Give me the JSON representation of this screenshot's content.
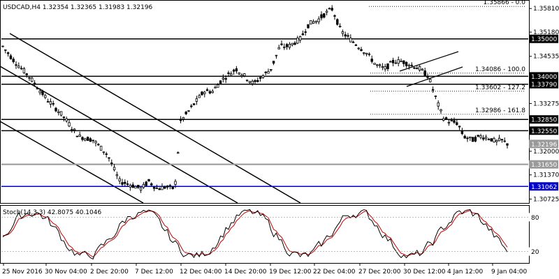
{
  "header": {
    "title": "USDCAD,H4  1.32354 1.32365 1.31983 1.32196"
  },
  "indicator": {
    "title": "Stoch(14,3,3) 42.8075 40.1046"
  },
  "colors": {
    "candle": "#000000",
    "support_line": "#000000",
    "low_line": "#999999",
    "blue_line": "#0000cc",
    "tag_black": "#000000",
    "tag_gray": "#999999",
    "tag_blue": "#0000cc",
    "stoch_main": "#000000",
    "stoch_signal": "#cc0000"
  },
  "chart_data": [
    {
      "type": "candlestick",
      "symbol": "USDCAD",
      "timeframe": "H4",
      "ylim": [
        1.3062,
        1.36
      ],
      "y_ticks": [
        "1.35810",
        "1.35180",
        "1.34535",
        "1.33275",
        "1.32000",
        "1.31370",
        "1.30725"
      ],
      "x_ticks": [
        "25 Nov 2016",
        "30 Nov 04:00",
        "2 Dec 20:00",
        "7 Dec 12:00",
        "12 Dec 04:00",
        "14 Dec 20:00",
        "19 Dec 12:00",
        "22 Dec 04:00",
        "27 Dec 20:00",
        "30 Dec 12:00",
        "4 Jan 12:00",
        "9 Jan 04:00"
      ],
      "current_price": "1.32196",
      "horizontal_levels": [
        {
          "value": 1.35,
          "label": "1.35000",
          "style": "black"
        },
        {
          "value": 1.34,
          "label": "1.34000",
          "style": "black"
        },
        {
          "value": 1.3379,
          "label": "1.33790",
          "style": "black"
        },
        {
          "value": 1.3285,
          "label": "1.32850",
          "style": "black"
        },
        {
          "value": 1.3255,
          "label": "1.32550",
          "style": "black"
        },
        {
          "value": 1.3165,
          "label": "1.31650",
          "style": "gray"
        },
        {
          "value": 1.31062,
          "label": "1.31062",
          "style": "blue"
        }
      ],
      "fibonacci_levels": [
        {
          "value": 1.35866,
          "label": "1.35866 - 0.0"
        },
        {
          "value": 1.34086,
          "label": "1.34086 - 100.0"
        },
        {
          "value": 1.33602,
          "label": "1.33602 - 127.2"
        },
        {
          "value": 1.32986,
          "label": "1.32986 - 161.8"
        }
      ],
      "grid": false
    },
    {
      "type": "line",
      "name": "Stoch(14,3,3)",
      "values_text": "42.8075 40.1046",
      "ylim": [
        0,
        100
      ],
      "levels": [
        "80",
        "20"
      ]
    }
  ]
}
